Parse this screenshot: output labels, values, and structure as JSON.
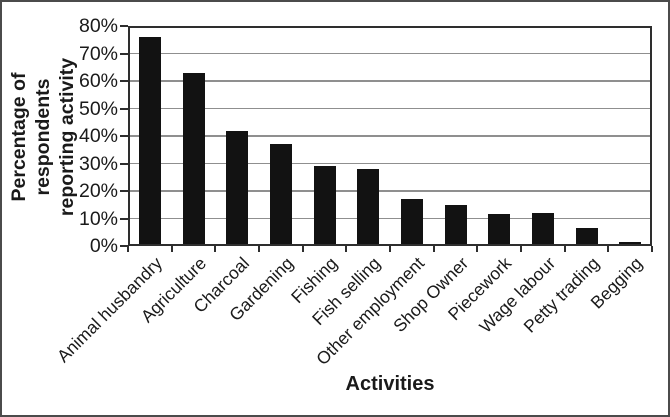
{
  "figure": {
    "background_color": "#ffffff",
    "border_color": "#4b4b4b"
  },
  "chart_data": {
    "type": "bar",
    "title": "",
    "xlabel": "Activities",
    "ylabel": "Percentage of respondents reporting activity",
    "ylabel_lines": [
      "Percentage of respondents",
      "reporting activity"
    ],
    "categories": [
      "Animal husbandry",
      "Agriculture",
      "Charcoal",
      "Gardening",
      "Fishing",
      "Fish selling",
      "Other employment",
      "Shop Owner",
      "Piecework",
      "Wage labour",
      "Petty trading",
      "Begging"
    ],
    "values": [
      76,
      63,
      42,
      37,
      29,
      28,
      17,
      15,
      11.5,
      12,
      6.5,
      1.5
    ],
    "ylim": [
      0,
      80
    ],
    "ytick_step": 10,
    "ytick_labels": [
      "0%",
      "10%",
      "20%",
      "30%",
      "40%",
      "50%",
      "60%",
      "70%",
      "80%"
    ],
    "grid": true,
    "legend": "none",
    "bar_color": "#121212",
    "gridline_color": "#8f8f8f",
    "axis_color": "#2e2e2e"
  }
}
